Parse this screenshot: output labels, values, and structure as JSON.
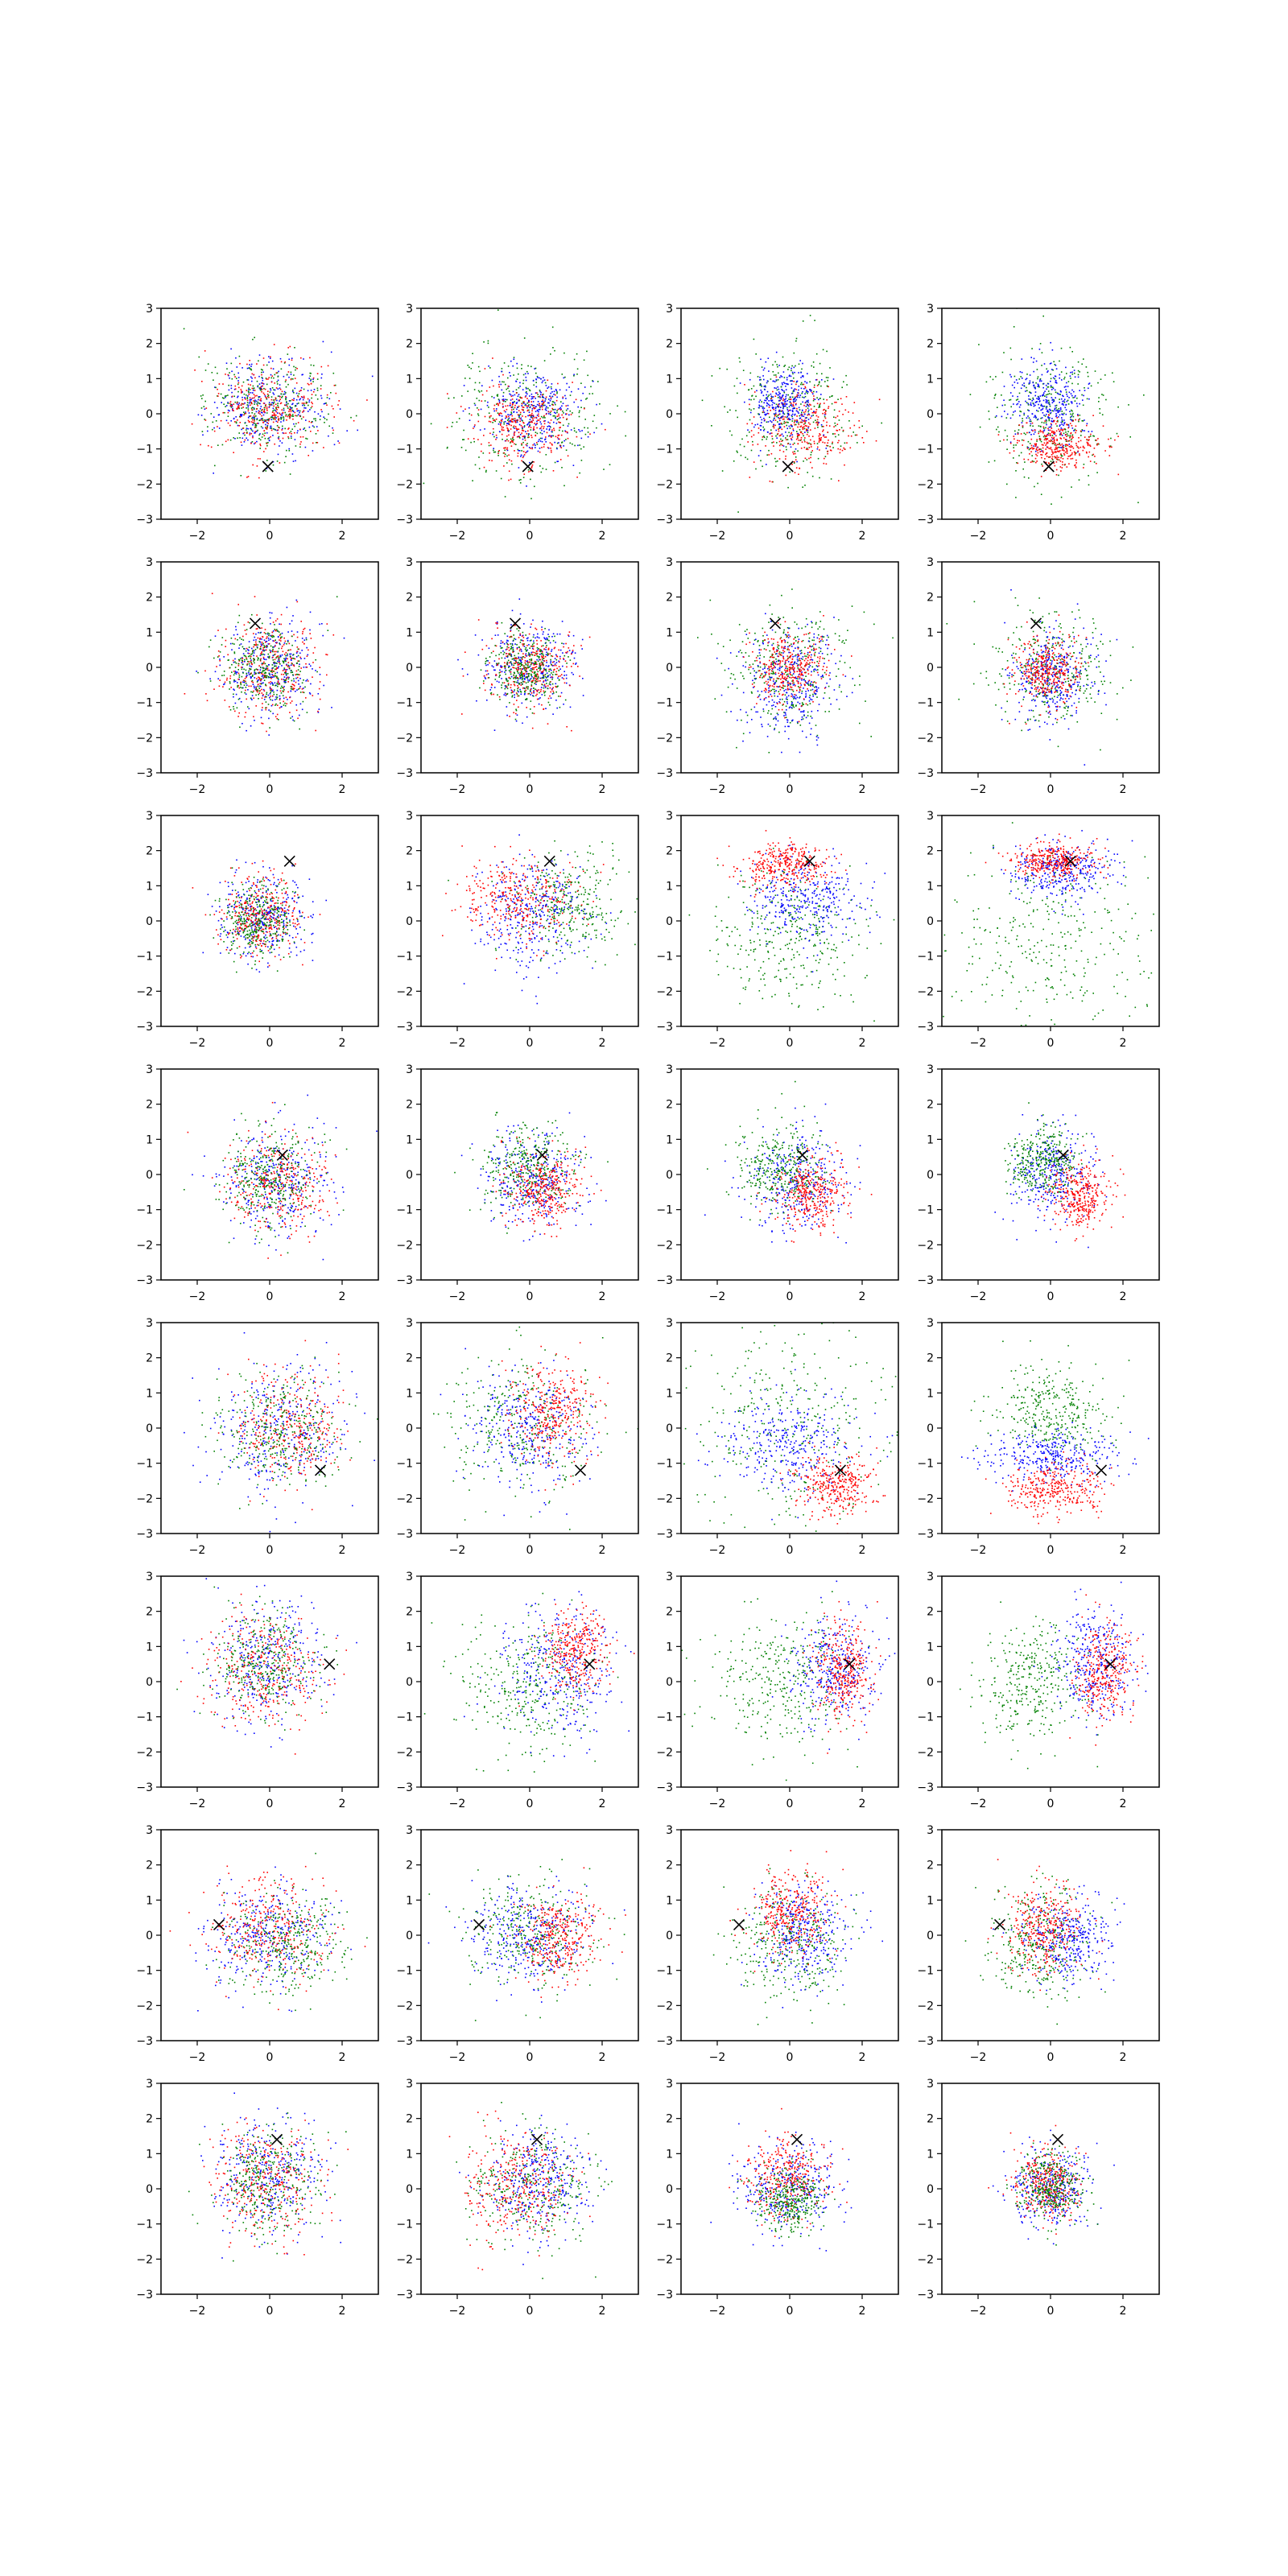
{
  "figure": {
    "rows": 8,
    "cols": 4,
    "series_colors": [
      "#0000ff",
      "#008000",
      "#ff0000"
    ],
    "marker_color": "#000000",
    "marker_symbol": "x"
  },
  "chart_data": {
    "type": "scatter",
    "layout": "8x4 grid of subplots",
    "xlim": [
      -3,
      3
    ],
    "ylim": [
      -3,
      3
    ],
    "xticks": [
      -2,
      0,
      2
    ],
    "yticks": [
      -3,
      -2,
      -1,
      0,
      1,
      2,
      3
    ],
    "xtick_labels": [
      "−2",
      "0",
      "2"
    ],
    "ytick_labels": [
      "−3",
      "−2",
      "−1",
      "0",
      "1",
      "2",
      "3"
    ],
    "grid": false,
    "legend": "none",
    "row_markers": [
      {
        "x": -0.05,
        "y": -1.5
      },
      {
        "x": -0.4,
        "y": 1.25
      },
      {
        "x": 0.55,
        "y": 1.7
      },
      {
        "x": 0.35,
        "y": 0.55
      },
      {
        "x": 1.4,
        "y": -1.2
      },
      {
        "x": 1.65,
        "y": 0.5
      },
      {
        "x": -1.4,
        "y": 0.3
      },
      {
        "x": 0.2,
        "y": 1.4
      }
    ],
    "panels": [
      {
        "row": 0,
        "col": 0,
        "series": [
          {
            "color": "#0000ff",
            "cx": 0,
            "cy": 0.2,
            "sx": 0.8,
            "sy": 0.7
          },
          {
            "color": "#008000",
            "cx": 0,
            "cy": 0.2,
            "sx": 0.8,
            "sy": 0.7
          },
          {
            "color": "#ff0000",
            "cx": 0,
            "cy": 0.2,
            "sx": 0.8,
            "sy": 0.7
          }
        ]
      },
      {
        "row": 0,
        "col": 1,
        "series": [
          {
            "color": "#008000",
            "cx": 0,
            "cy": 0,
            "sx": 1.1,
            "sy": 1.0
          },
          {
            "color": "#0000ff",
            "cx": 0.1,
            "cy": 0.1,
            "sx": 0.7,
            "sy": 0.6
          },
          {
            "color": "#ff0000",
            "cx": -0.2,
            "cy": -0.3,
            "sx": 0.7,
            "sy": 0.6
          }
        ]
      },
      {
        "row": 0,
        "col": 2,
        "series": [
          {
            "color": "#008000",
            "cx": 0,
            "cy": 0,
            "sx": 0.9,
            "sy": 0.9
          },
          {
            "color": "#ff0000",
            "cx": 0.5,
            "cy": -0.4,
            "sx": 0.65,
            "sy": 0.6
          },
          {
            "color": "#0000ff",
            "cx": -0.2,
            "cy": 0.3,
            "sx": 0.5,
            "sy": 0.55
          }
        ]
      },
      {
        "row": 0,
        "col": 3,
        "series": [
          {
            "color": "#008000",
            "cx": 0,
            "cy": 0,
            "sx": 0.9,
            "sy": 0.9
          },
          {
            "color": "#0000ff",
            "cx": -0.1,
            "cy": 0.3,
            "sx": 0.55,
            "sy": 0.6
          },
          {
            "color": "#ff0000",
            "cx": 0.2,
            "cy": -0.9,
            "sx": 0.55,
            "sy": 0.35
          }
        ]
      },
      {
        "row": 1,
        "col": 0,
        "series": [
          {
            "color": "#0000ff",
            "cx": 0,
            "cy": 0,
            "sx": 0.7,
            "sy": 0.7
          },
          {
            "color": "#ff0000",
            "cx": 0,
            "cy": 0,
            "sx": 0.7,
            "sy": 0.7
          },
          {
            "color": "#008000",
            "cx": -0.1,
            "cy": 0,
            "sx": 0.6,
            "sy": 0.65
          }
        ]
      },
      {
        "row": 1,
        "col": 1,
        "series": [
          {
            "color": "#0000ff",
            "cx": 0,
            "cy": 0,
            "sx": 0.6,
            "sy": 0.6
          },
          {
            "color": "#ff0000",
            "cx": 0,
            "cy": 0,
            "sx": 0.6,
            "sy": 0.6
          },
          {
            "color": "#008000",
            "cx": -0.1,
            "cy": -0.1,
            "sx": 0.5,
            "sy": 0.5
          }
        ]
      },
      {
        "row": 1,
        "col": 2,
        "series": [
          {
            "color": "#008000",
            "cx": 0,
            "cy": 0,
            "sx": 0.9,
            "sy": 0.9
          },
          {
            "color": "#0000ff",
            "cx": 0,
            "cy": -0.4,
            "sx": 0.7,
            "sy": 0.75
          },
          {
            "color": "#ff0000",
            "cx": 0,
            "cy": 0,
            "sx": 0.5,
            "sy": 0.5
          }
        ]
      },
      {
        "row": 1,
        "col": 3,
        "series": [
          {
            "color": "#008000",
            "cx": 0,
            "cy": 0,
            "sx": 0.8,
            "sy": 0.8
          },
          {
            "color": "#0000ff",
            "cx": 0,
            "cy": -0.3,
            "sx": 0.6,
            "sy": 0.65
          },
          {
            "color": "#ff0000",
            "cx": -0.1,
            "cy": -0.1,
            "sx": 0.45,
            "sy": 0.5
          }
        ]
      },
      {
        "row": 2,
        "col": 0,
        "series": [
          {
            "color": "#0000ff",
            "cx": -0.2,
            "cy": 0.1,
            "sx": 0.6,
            "sy": 0.6
          },
          {
            "color": "#ff0000",
            "cx": -0.2,
            "cy": 0.1,
            "sx": 0.55,
            "sy": 0.55
          },
          {
            "color": "#008000",
            "cx": -0.3,
            "cy": 0,
            "sx": 0.5,
            "sy": 0.5
          }
        ]
      },
      {
        "row": 2,
        "col": 1,
        "series": [
          {
            "color": "#008000",
            "cx": 1.0,
            "cy": 0.5,
            "sx": 0.8,
            "sy": 0.7
          },
          {
            "color": "#0000ff",
            "cx": 0.1,
            "cy": 0.2,
            "sx": 0.8,
            "sy": 0.8
          },
          {
            "color": "#ff0000",
            "cx": -0.3,
            "cy": 0.6,
            "sx": 0.8,
            "sy": 0.6
          }
        ]
      },
      {
        "row": 2,
        "col": 2,
        "series": [
          {
            "color": "#008000",
            "cx": 0,
            "cy": -0.4,
            "sx": 1.0,
            "sy": 1.0
          },
          {
            "color": "#0000ff",
            "cx": 0.4,
            "cy": 0.6,
            "sx": 0.8,
            "sy": 0.6
          },
          {
            "color": "#ff0000",
            "cx": -0.1,
            "cy": 1.6,
            "sx": 0.6,
            "sy": 0.3
          }
        ]
      },
      {
        "row": 2,
        "col": 3,
        "series": [
          {
            "color": "#008000",
            "cx": 0,
            "cy": -0.6,
            "sx": 1.5,
            "sy": 1.4
          },
          {
            "color": "#0000ff",
            "cx": 0.2,
            "cy": 1.4,
            "sx": 0.7,
            "sy": 0.4
          },
          {
            "color": "#ff0000",
            "cx": 0.1,
            "cy": 1.7,
            "sx": 0.55,
            "sy": 0.25
          }
        ]
      },
      {
        "row": 3,
        "col": 0,
        "series": [
          {
            "color": "#0000ff",
            "cx": 0.2,
            "cy": -0.2,
            "sx": 0.75,
            "sy": 0.8
          },
          {
            "color": "#ff0000",
            "cx": 0.2,
            "cy": -0.3,
            "sx": 0.7,
            "sy": 0.7
          },
          {
            "color": "#008000",
            "cx": 0,
            "cy": -0.1,
            "sx": 0.65,
            "sy": 0.7
          }
        ]
      },
      {
        "row": 3,
        "col": 1,
        "series": [
          {
            "color": "#0000ff",
            "cx": 0.2,
            "cy": -0.2,
            "sx": 0.7,
            "sy": 0.7
          },
          {
            "color": "#008000",
            "cx": -0.1,
            "cy": 0.1,
            "sx": 0.6,
            "sy": 0.6
          },
          {
            "color": "#ff0000",
            "cx": 0.4,
            "cy": -0.4,
            "sx": 0.55,
            "sy": 0.5
          }
        ]
      },
      {
        "row": 3,
        "col": 2,
        "series": [
          {
            "color": "#0000ff",
            "cx": 0.2,
            "cy": -0.2,
            "sx": 0.7,
            "sy": 0.7
          },
          {
            "color": "#008000",
            "cx": -0.3,
            "cy": 0.2,
            "sx": 0.6,
            "sy": 0.6
          },
          {
            "color": "#ff0000",
            "cx": 0.6,
            "cy": -0.5,
            "sx": 0.5,
            "sy": 0.5
          }
        ]
      },
      {
        "row": 3,
        "col": 3,
        "series": [
          {
            "color": "#0000ff",
            "cx": 0.1,
            "cy": 0,
            "sx": 0.6,
            "sy": 0.6
          },
          {
            "color": "#008000",
            "cx": -0.2,
            "cy": 0.4,
            "sx": 0.5,
            "sy": 0.5
          },
          {
            "color": "#ff0000",
            "cx": 0.8,
            "cy": -0.6,
            "sx": 0.4,
            "sy": 0.45
          }
        ]
      },
      {
        "row": 4,
        "col": 0,
        "series": [
          {
            "color": "#0000ff",
            "cx": 0.3,
            "cy": 0,
            "sx": 0.9,
            "sy": 0.9
          },
          {
            "color": "#ff0000",
            "cx": 0.5,
            "cy": 0,
            "sx": 0.75,
            "sy": 0.8
          },
          {
            "color": "#008000",
            "cx": 0.3,
            "cy": 0,
            "sx": 0.8,
            "sy": 0.8
          }
        ]
      },
      {
        "row": 4,
        "col": 1,
        "series": [
          {
            "color": "#008000",
            "cx": -0.1,
            "cy": 0,
            "sx": 1.0,
            "sy": 1.0
          },
          {
            "color": "#0000ff",
            "cx": 0,
            "cy": 0,
            "sx": 0.75,
            "sy": 0.8
          },
          {
            "color": "#ff0000",
            "cx": 0.6,
            "cy": 0.5,
            "sx": 0.6,
            "sy": 0.7
          }
        ]
      },
      {
        "row": 4,
        "col": 2,
        "series": [
          {
            "color": "#008000",
            "cx": 0,
            "cy": 0,
            "sx": 1.4,
            "sy": 1.5
          },
          {
            "color": "#0000ff",
            "cx": 0,
            "cy": -0.5,
            "sx": 0.9,
            "sy": 0.7
          },
          {
            "color": "#ff0000",
            "cx": 1.3,
            "cy": -1.6,
            "sx": 0.55,
            "sy": 0.4
          }
        ]
      },
      {
        "row": 4,
        "col": 3,
        "series": [
          {
            "color": "#008000",
            "cx": 0,
            "cy": 0.5,
            "sx": 0.8,
            "sy": 0.7
          },
          {
            "color": "#0000ff",
            "cx": 0,
            "cy": -0.8,
            "sx": 0.9,
            "sy": 0.35
          },
          {
            "color": "#ff0000",
            "cx": 0.1,
            "cy": -1.7,
            "sx": 0.65,
            "sy": 0.35
          }
        ]
      },
      {
        "row": 5,
        "col": 0,
        "series": [
          {
            "color": "#0000ff",
            "cx": 0,
            "cy": 0.5,
            "sx": 0.85,
            "sy": 0.9
          },
          {
            "color": "#ff0000",
            "cx": -0.1,
            "cy": 0.4,
            "sx": 0.8,
            "sy": 0.8
          },
          {
            "color": "#008000",
            "cx": -0.2,
            "cy": 0.6,
            "sx": 0.75,
            "sy": 0.75
          }
        ]
      },
      {
        "row": 5,
        "col": 1,
        "series": [
          {
            "color": "#008000",
            "cx": 0,
            "cy": 0,
            "sx": 1.0,
            "sy": 1.0
          },
          {
            "color": "#0000ff",
            "cx": 0.8,
            "cy": 0.2,
            "sx": 0.8,
            "sy": 0.9
          },
          {
            "color": "#ff0000",
            "cx": 1.3,
            "cy": 0.9,
            "sx": 0.5,
            "sy": 0.55
          }
        ]
      },
      {
        "row": 5,
        "col": 2,
        "series": [
          {
            "color": "#008000",
            "cx": -0.3,
            "cy": 0,
            "sx": 1.0,
            "sy": 1.0
          },
          {
            "color": "#0000ff",
            "cx": 1.2,
            "cy": 0.3,
            "sx": 0.6,
            "sy": 0.8
          },
          {
            "color": "#ff0000",
            "cx": 1.5,
            "cy": 0.3,
            "sx": 0.4,
            "sy": 0.7
          }
        ]
      },
      {
        "row": 5,
        "col": 3,
        "series": [
          {
            "color": "#008000",
            "cx": -0.5,
            "cy": 0,
            "sx": 0.7,
            "sy": 0.8
          },
          {
            "color": "#0000ff",
            "cx": 1.2,
            "cy": 0.5,
            "sx": 0.6,
            "sy": 0.8
          },
          {
            "color": "#ff0000",
            "cx": 1.5,
            "cy": 0.3,
            "sx": 0.4,
            "sy": 0.75
          }
        ]
      },
      {
        "row": 6,
        "col": 0,
        "series": [
          {
            "color": "#0000ff",
            "cx": 0,
            "cy": 0,
            "sx": 0.9,
            "sy": 0.8
          },
          {
            "color": "#ff0000",
            "cx": -0.1,
            "cy": 0.2,
            "sx": 0.85,
            "sy": 0.75
          },
          {
            "color": "#008000",
            "cx": 0.4,
            "cy": -0.2,
            "sx": 0.8,
            "sy": 0.7
          }
        ]
      },
      {
        "row": 6,
        "col": 1,
        "series": [
          {
            "color": "#008000",
            "cx": 0,
            "cy": 0,
            "sx": 0.85,
            "sy": 0.8
          },
          {
            "color": "#0000ff",
            "cx": 0,
            "cy": 0,
            "sx": 0.8,
            "sy": 0.7
          },
          {
            "color": "#ff0000",
            "cx": 0.8,
            "cy": -0.1,
            "sx": 0.6,
            "sy": 0.6
          }
        ]
      },
      {
        "row": 6,
        "col": 2,
        "series": [
          {
            "color": "#008000",
            "cx": 0,
            "cy": -0.3,
            "sx": 0.8,
            "sy": 0.8
          },
          {
            "color": "#0000ff",
            "cx": 0.4,
            "cy": 0,
            "sx": 0.6,
            "sy": 0.7
          },
          {
            "color": "#ff0000",
            "cx": 0,
            "cy": 0.6,
            "sx": 0.6,
            "sy": 0.6
          }
        ]
      },
      {
        "row": 6,
        "col": 3,
        "series": [
          {
            "color": "#008000",
            "cx": -0.3,
            "cy": -0.3,
            "sx": 0.7,
            "sy": 0.8
          },
          {
            "color": "#0000ff",
            "cx": 0.5,
            "cy": 0,
            "sx": 0.6,
            "sy": 0.6
          },
          {
            "color": "#ff0000",
            "cx": -0.2,
            "cy": 0.2,
            "sx": 0.55,
            "sy": 0.6
          }
        ]
      },
      {
        "row": 7,
        "col": 0,
        "series": [
          {
            "color": "#0000ff",
            "cx": 0,
            "cy": 0.3,
            "sx": 0.8,
            "sy": 0.85
          },
          {
            "color": "#ff0000",
            "cx": -0.1,
            "cy": 0.2,
            "sx": 0.75,
            "sy": 0.8
          },
          {
            "color": "#008000",
            "cx": 0,
            "cy": 0.2,
            "sx": 0.7,
            "sy": 0.75
          }
        ]
      },
      {
        "row": 7,
        "col": 1,
        "series": [
          {
            "color": "#008000",
            "cx": 0.1,
            "cy": 0,
            "sx": 0.85,
            "sy": 0.85
          },
          {
            "color": "#0000ff",
            "cx": 0.2,
            "cy": 0.2,
            "sx": 0.7,
            "sy": 0.75
          },
          {
            "color": "#ff0000",
            "cx": -0.3,
            "cy": 0.1,
            "sx": 0.7,
            "sy": 0.75
          }
        ]
      },
      {
        "row": 7,
        "col": 2,
        "series": [
          {
            "color": "#0000ff",
            "cx": 0,
            "cy": 0,
            "sx": 0.7,
            "sy": 0.65
          },
          {
            "color": "#ff0000",
            "cx": -0.1,
            "cy": 0.3,
            "sx": 0.55,
            "sy": 0.55
          },
          {
            "color": "#008000",
            "cx": 0,
            "cy": -0.3,
            "sx": 0.45,
            "sy": 0.45
          }
        ]
      },
      {
        "row": 7,
        "col": 3,
        "series": [
          {
            "color": "#0000ff",
            "cx": 0,
            "cy": 0,
            "sx": 0.55,
            "sy": 0.55
          },
          {
            "color": "#ff0000",
            "cx": -0.1,
            "cy": 0.1,
            "sx": 0.45,
            "sy": 0.5
          },
          {
            "color": "#008000",
            "cx": 0,
            "cy": 0,
            "sx": 0.45,
            "sy": 0.45
          }
        ]
      }
    ]
  }
}
